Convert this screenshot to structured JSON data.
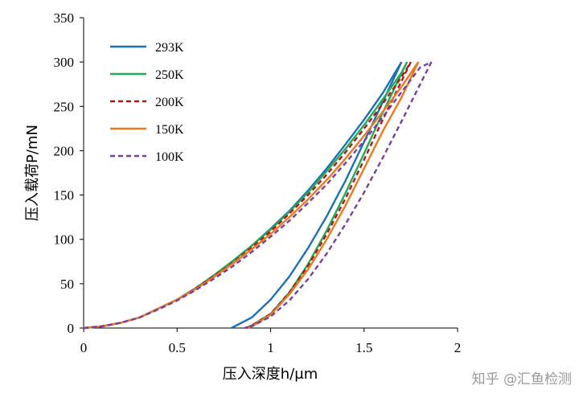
{
  "chart_data": {
    "type": "line",
    "title": "",
    "xlabel": "压入深度h/μm",
    "ylabel": "压入载荷P/mN",
    "xlim": [
      0,
      2
    ],
    "ylim": [
      0,
      350
    ],
    "xticks": [
      "0",
      "0.5",
      "1",
      "1.5",
      "2"
    ],
    "yticks": [
      "0",
      "50",
      "100",
      "150",
      "200",
      "250",
      "300",
      "350"
    ],
    "grid": false,
    "legend_position": "top-left",
    "series": [
      {
        "name": "293K",
        "color": "#1f6fb5",
        "dash": "solid",
        "loading": [
          [
            0,
            0
          ],
          [
            0.1,
            2
          ],
          [
            0.2,
            6
          ],
          [
            0.3,
            12
          ],
          [
            0.4,
            22
          ],
          [
            0.5,
            32
          ],
          [
            0.6,
            45
          ],
          [
            0.7,
            60
          ],
          [
            0.8,
            76
          ],
          [
            0.9,
            93
          ],
          [
            1.0,
            112
          ],
          [
            1.1,
            132
          ],
          [
            1.2,
            155
          ],
          [
            1.3,
            180
          ],
          [
            1.4,
            207
          ],
          [
            1.5,
            235
          ],
          [
            1.6,
            265
          ],
          [
            1.7,
            300
          ]
        ],
        "unloading": [
          [
            1.7,
            300
          ],
          [
            1.6,
            255
          ],
          [
            1.5,
            210
          ],
          [
            1.4,
            166
          ],
          [
            1.3,
            126
          ],
          [
            1.2,
            90
          ],
          [
            1.1,
            58
          ],
          [
            1.0,
            32
          ],
          [
            0.9,
            12
          ],
          [
            0.79,
            0
          ]
        ]
      },
      {
        "name": "250K",
        "color": "#1fad5a",
        "dash": "solid",
        "loading": [
          [
            0,
            0
          ],
          [
            0.1,
            2
          ],
          [
            0.2,
            6
          ],
          [
            0.3,
            12
          ],
          [
            0.4,
            22
          ],
          [
            0.5,
            32
          ],
          [
            0.6,
            45
          ],
          [
            0.7,
            60
          ],
          [
            0.8,
            76
          ],
          [
            0.9,
            93
          ],
          [
            1.0,
            111
          ],
          [
            1.1,
            131
          ],
          [
            1.2,
            153
          ],
          [
            1.3,
            177
          ],
          [
            1.4,
            202
          ],
          [
            1.5,
            229
          ],
          [
            1.6,
            258
          ],
          [
            1.7,
            288
          ],
          [
            1.73,
            300
          ]
        ],
        "unloading": [
          [
            1.73,
            300
          ],
          [
            1.6,
            243
          ],
          [
            1.5,
            197
          ],
          [
            1.4,
            152
          ],
          [
            1.3,
            110
          ],
          [
            1.2,
            72
          ],
          [
            1.1,
            40
          ],
          [
            1.0,
            16
          ],
          [
            0.9,
            3
          ],
          [
            0.87,
            0
          ]
        ]
      },
      {
        "name": "200K",
        "color": "#b01818",
        "dash": "dash",
        "loading": [
          [
            0,
            0
          ],
          [
            0.1,
            2
          ],
          [
            0.2,
            6
          ],
          [
            0.3,
            12
          ],
          [
            0.4,
            22
          ],
          [
            0.5,
            32
          ],
          [
            0.6,
            45
          ],
          [
            0.7,
            59
          ],
          [
            0.8,
            74
          ],
          [
            0.9,
            91
          ],
          [
            1.0,
            109
          ],
          [
            1.1,
            129
          ],
          [
            1.2,
            150
          ],
          [
            1.3,
            173
          ],
          [
            1.4,
            198
          ],
          [
            1.5,
            225
          ],
          [
            1.6,
            253
          ],
          [
            1.7,
            283
          ],
          [
            1.75,
            300
          ]
        ],
        "unloading": [
          [
            1.75,
            300
          ],
          [
            1.6,
            235
          ],
          [
            1.5,
            190
          ],
          [
            1.4,
            146
          ],
          [
            1.3,
            106
          ],
          [
            1.2,
            70
          ],
          [
            1.1,
            40
          ],
          [
            1.0,
            16
          ],
          [
            0.9,
            3
          ],
          [
            0.87,
            0
          ]
        ]
      },
      {
        "name": "150K",
        "color": "#ee7a1e",
        "dash": "solid",
        "loading": [
          [
            0,
            0
          ],
          [
            0.1,
            2
          ],
          [
            0.2,
            6
          ],
          [
            0.3,
            12
          ],
          [
            0.4,
            22
          ],
          [
            0.5,
            32
          ],
          [
            0.6,
            44
          ],
          [
            0.7,
            58
          ],
          [
            0.8,
            73
          ],
          [
            0.9,
            89
          ],
          [
            1.0,
            106
          ],
          [
            1.1,
            125
          ],
          [
            1.2,
            145
          ],
          [
            1.3,
            167
          ],
          [
            1.4,
            191
          ],
          [
            1.5,
            217
          ],
          [
            1.6,
            244
          ],
          [
            1.7,
            272
          ],
          [
            1.79,
            300
          ]
        ],
        "unloading": [
          [
            1.79,
            300
          ],
          [
            1.7,
            260
          ],
          [
            1.6,
            222
          ],
          [
            1.5,
            180
          ],
          [
            1.4,
            138
          ],
          [
            1.3,
            100
          ],
          [
            1.2,
            66
          ],
          [
            1.1,
            38
          ],
          [
            1.0,
            15
          ],
          [
            0.9,
            2
          ],
          [
            0.88,
            0
          ]
        ]
      },
      {
        "name": "100K",
        "color": "#7a3fa0",
        "dash": "dash",
        "loading": [
          [
            0,
            0
          ],
          [
            0.1,
            2
          ],
          [
            0.2,
            6
          ],
          [
            0.3,
            12
          ],
          [
            0.4,
            21
          ],
          [
            0.5,
            31
          ],
          [
            0.6,
            43
          ],
          [
            0.7,
            56
          ],
          [
            0.8,
            70
          ],
          [
            0.9,
            86
          ],
          [
            1.0,
            103
          ],
          [
            1.1,
            121
          ],
          [
            1.2,
            141
          ],
          [
            1.3,
            162
          ],
          [
            1.4,
            186
          ],
          [
            1.5,
            211
          ],
          [
            1.6,
            238
          ],
          [
            1.7,
            266
          ],
          [
            1.8,
            294
          ],
          [
            1.86,
            300
          ]
        ],
        "unloading": [
          [
            1.86,
            300
          ],
          [
            1.8,
            275
          ],
          [
            1.7,
            233
          ],
          [
            1.6,
            192
          ],
          [
            1.5,
            153
          ],
          [
            1.4,
            117
          ],
          [
            1.3,
            84
          ],
          [
            1.2,
            55
          ],
          [
            1.1,
            31
          ],
          [
            1.0,
            13
          ],
          [
            0.9,
            2
          ],
          [
            0.86,
            0
          ]
        ]
      }
    ]
  },
  "watermark": "知乎 @汇鱼检测"
}
